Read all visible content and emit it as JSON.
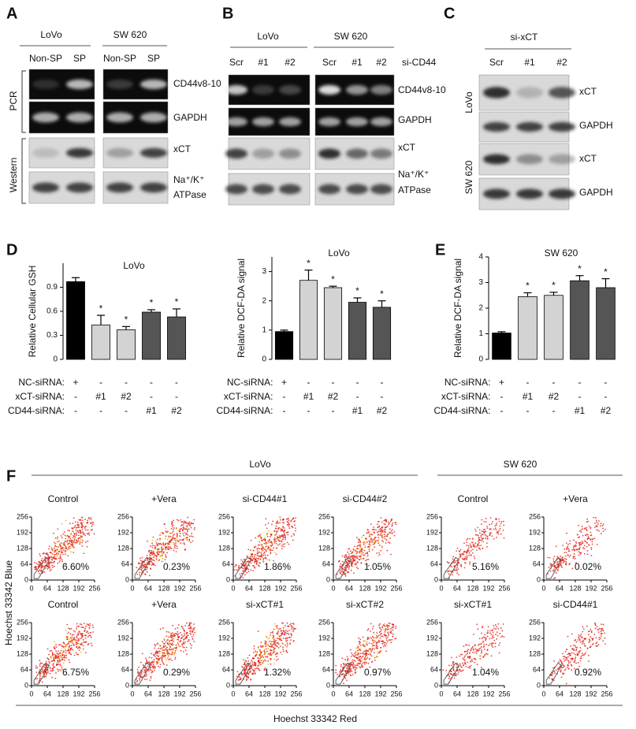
{
  "blots": {
    "A": {
      "label": "A",
      "groups": [
        "LoVo",
        "SW 620"
      ],
      "lanes": [
        "Non-SP",
        "SP",
        "Non-SP",
        "SP"
      ],
      "sections": [
        "PCR",
        "Western"
      ],
      "rows": [
        "CD44v8-10",
        "GAPDH",
        "xCT",
        "Na⁺/K⁺",
        "ATPase"
      ]
    },
    "B": {
      "label": "B",
      "groups": [
        "LoVo",
        "SW 620"
      ],
      "lanes": [
        "Scr",
        "#1",
        "#2",
        "Scr",
        "#1",
        "#2"
      ],
      "treatment": "si-CD44",
      "rows": [
        "CD44v8-10",
        "GAPDH",
        "xCT",
        "Na⁺/K⁺",
        "ATPase"
      ]
    },
    "C": {
      "label": "C",
      "treatment": "si-xCT",
      "lanes": [
        "Scr",
        "#1",
        "#2"
      ],
      "groups": [
        "LoVo",
        "SW 620"
      ],
      "rows": [
        "xCT",
        "GAPDH",
        "xCT",
        "GAPDH"
      ]
    }
  },
  "chart_data": [
    {
      "type": "bar",
      "panel_label": "D",
      "title": "LoVo",
      "y_label": "Relative  Cellular GSH",
      "values": [
        0.97,
        0.43,
        0.37,
        0.59,
        0.53
      ],
      "errors": [
        0.05,
        0.12,
        0.04,
        0.03,
        0.1
      ],
      "colors": [
        "#000000",
        "#d3d3d3",
        "#d3d3d3",
        "#555555",
        "#555555"
      ],
      "significance": [
        null,
        "*",
        "*",
        "*",
        "*"
      ],
      "ylim": [
        0,
        1.2
      ],
      "yticks": [
        0,
        0.3,
        0.6,
        0.9
      ],
      "conditions": [
        {
          "name": "NC-siRNA:",
          "values": [
            "+",
            "-",
            "-",
            "-",
            "-"
          ]
        },
        {
          "name": "xCT-siRNA:",
          "values": [
            "-",
            "#1",
            "#2",
            "-",
            "-"
          ]
        },
        {
          "name": "CD44-siRNA:",
          "values": [
            "-",
            "-",
            "-",
            "#1",
            "#2"
          ]
        }
      ]
    },
    {
      "type": "bar",
      "title": "LoVo",
      "y_label": "Relative DCF-DA signal",
      "values": [
        0.95,
        2.7,
        2.45,
        1.95,
        1.78
      ],
      "errors": [
        0.05,
        0.35,
        0.05,
        0.15,
        0.22
      ],
      "colors": [
        "#000000",
        "#d3d3d3",
        "#d3d3d3",
        "#555555",
        "#555555"
      ],
      "significance": [
        null,
        "*",
        "*",
        "*",
        "*"
      ],
      "ylim": [
        0,
        3.5
      ],
      "yticks": [
        0,
        1,
        2,
        3
      ],
      "conditions": [
        {
          "name": "NC-siRNA:",
          "values": [
            "+",
            "-",
            "-",
            "-",
            "-"
          ]
        },
        {
          "name": "xCT-siRNA:",
          "values": [
            "-",
            "#1",
            "#2",
            "-",
            "-"
          ]
        },
        {
          "name": "CD44-siRNA:",
          "values": [
            "-",
            "-",
            "-",
            "#1",
            "#2"
          ]
        }
      ]
    },
    {
      "type": "bar",
      "panel_label": "E",
      "title": "SW 620",
      "y_label": "Relative DCF-DA signal",
      "values": [
        1.03,
        2.45,
        2.5,
        3.07,
        2.8
      ],
      "errors": [
        0.05,
        0.15,
        0.12,
        0.2,
        0.35
      ],
      "colors": [
        "#000000",
        "#d3d3d3",
        "#d3d3d3",
        "#555555",
        "#555555"
      ],
      "significance": [
        null,
        "*",
        "*",
        "*",
        "*"
      ],
      "ylim": [
        0,
        4
      ],
      "yticks": [
        0,
        1,
        2,
        3,
        4
      ],
      "conditions": [
        {
          "name": "NC-siRNA:",
          "values": [
            "+",
            "-",
            "-",
            "-",
            "-"
          ]
        },
        {
          "name": "xCT-siRNA:",
          "values": [
            "-",
            "#1",
            "#2",
            "-",
            "-"
          ]
        },
        {
          "name": "CD44-siRNA:",
          "values": [
            "-",
            "-",
            "-",
            "#1",
            "#2"
          ]
        }
      ]
    }
  ],
  "flow": {
    "label": "F",
    "groups": [
      "LoVo",
      "SW 620"
    ],
    "y_label": "Hoechst 33342 Blue",
    "x_label": "Hoechst 33342 Red",
    "ticks": [
      0,
      64,
      128,
      192,
      256
    ],
    "plots": [
      {
        "title": "Control",
        "percent": "6.60%"
      },
      {
        "title": "+Vera",
        "percent": "0.23%"
      },
      {
        "title": "si-CD44#1",
        "percent": "1.86%"
      },
      {
        "title": "si-CD44#2",
        "percent": "1.05%"
      },
      {
        "title": "Control",
        "percent": "5.16%"
      },
      {
        "title": "+Vera",
        "percent": "0.02%"
      },
      {
        "title": "Control",
        "percent": "6.75%"
      },
      {
        "title": "+Vera",
        "percent": "0.29%"
      },
      {
        "title": "si-xCT#1",
        "percent": "1.32%"
      },
      {
        "title": "si-xCT#2",
        "percent": "0.97%"
      },
      {
        "title": "si-xCT#1",
        "percent": "1.04%"
      },
      {
        "title": "si-CD44#1",
        "percent": "0.92%"
      }
    ]
  }
}
